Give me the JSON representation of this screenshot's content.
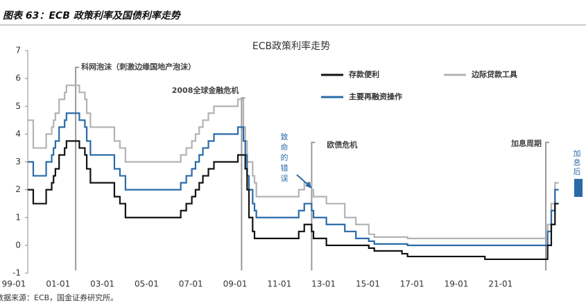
{
  "header": {
    "title": "图表 63：ECB 政策利率及国债利率走势"
  },
  "chart_data": {
    "type": "step",
    "title": "ECB政策利率走势",
    "x": [
      "99-01",
      "99-04",
      "99-11",
      "00-02",
      "00-03",
      "00-04",
      "00-06",
      "00-09",
      "00-10",
      "01-05",
      "01-08",
      "01-09",
      "01-11",
      "02-12",
      "03-03",
      "03-06",
      "05-12",
      "06-03",
      "06-06",
      "06-08",
      "06-10",
      "06-12",
      "07-03",
      "07-06",
      "08-07",
      "08-10",
      "08-11",
      "08-12",
      "09-01",
      "09-03",
      "09-04",
      "09-05",
      "11-04",
      "11-07",
      "11-11",
      "11-12",
      "12-07",
      "13-05",
      "13-11",
      "14-06",
      "14-09",
      "15-12",
      "16-03",
      "19-09",
      "22-07",
      "22-09",
      "22-11",
      "23-01"
    ],
    "series": [
      {
        "name": "存款便利",
        "color": "#111111",
        "values": [
          2.0,
          1.5,
          2.0,
          2.25,
          2.5,
          2.75,
          3.25,
          3.5,
          3.75,
          3.5,
          3.25,
          2.75,
          2.25,
          1.75,
          1.5,
          1.0,
          1.25,
          1.5,
          1.75,
          2.0,
          2.25,
          2.5,
          2.75,
          3.0,
          3.25,
          3.25,
          2.75,
          2.0,
          1.0,
          0.5,
          0.25,
          0.25,
          0.5,
          0.75,
          0.5,
          0.25,
          0,
          0,
          0,
          -0.1,
          -0.2,
          -0.3,
          -0.4,
          -0.5,
          0,
          0.75,
          1.5,
          1.5
        ]
      },
      {
        "name": "边际贷款工具",
        "color": "#b3b3b3",
        "values": [
          4.5,
          3.5,
          4.0,
          4.25,
          4.5,
          4.75,
          5.25,
          5.5,
          5.75,
          5.5,
          5.25,
          4.75,
          4.25,
          3.75,
          3.5,
          3.0,
          3.25,
          3.5,
          3.75,
          4.0,
          4.25,
          4.5,
          4.75,
          5.0,
          5.25,
          4.25,
          3.75,
          3.0,
          3.0,
          2.5,
          2.25,
          1.75,
          2.0,
          2.25,
          2.0,
          1.75,
          1.5,
          1.0,
          0.75,
          0.4,
          0.3,
          0.3,
          0.25,
          0.25,
          0.75,
          1.5,
          2.25,
          2.25
        ]
      },
      {
        "name": "主要再融资操作",
        "color": "#2a6aa8",
        "values": [
          3.0,
          2.5,
          3.0,
          3.25,
          3.5,
          3.75,
          4.25,
          4.5,
          4.75,
          4.5,
          4.25,
          3.75,
          3.25,
          2.75,
          2.5,
          2.0,
          2.25,
          2.5,
          2.75,
          3.0,
          3.25,
          3.5,
          3.75,
          4.0,
          4.25,
          3.75,
          3.25,
          2.5,
          2.0,
          1.5,
          1.25,
          1.0,
          1.25,
          1.5,
          1.25,
          1.0,
          0.75,
          0.5,
          0.25,
          0.15,
          0.05,
          0.05,
          0,
          0,
          0.5,
          1.25,
          2.0,
          2.0
        ]
      }
    ],
    "ylim": [
      -1,
      7
    ],
    "yticks": [
      -1,
      0,
      1,
      2,
      3,
      4,
      5,
      6,
      7
    ],
    "xticks": [
      "99-01",
      "01-01",
      "03-01",
      "05-01",
      "07-01",
      "09-01",
      "11-01",
      "13-01",
      "15-01",
      "17-01",
      "19-01",
      "21-01"
    ],
    "grid": false,
    "annotations": [
      "科网泡沫（刺激边缘国地产泡沫）",
      "2008全球金融危机",
      "欧债危机",
      "加息周期",
      "致命的错误",
      "加息后"
    ]
  },
  "footer": {
    "source": "数据来源：ECB，国金证券研究所。"
  }
}
